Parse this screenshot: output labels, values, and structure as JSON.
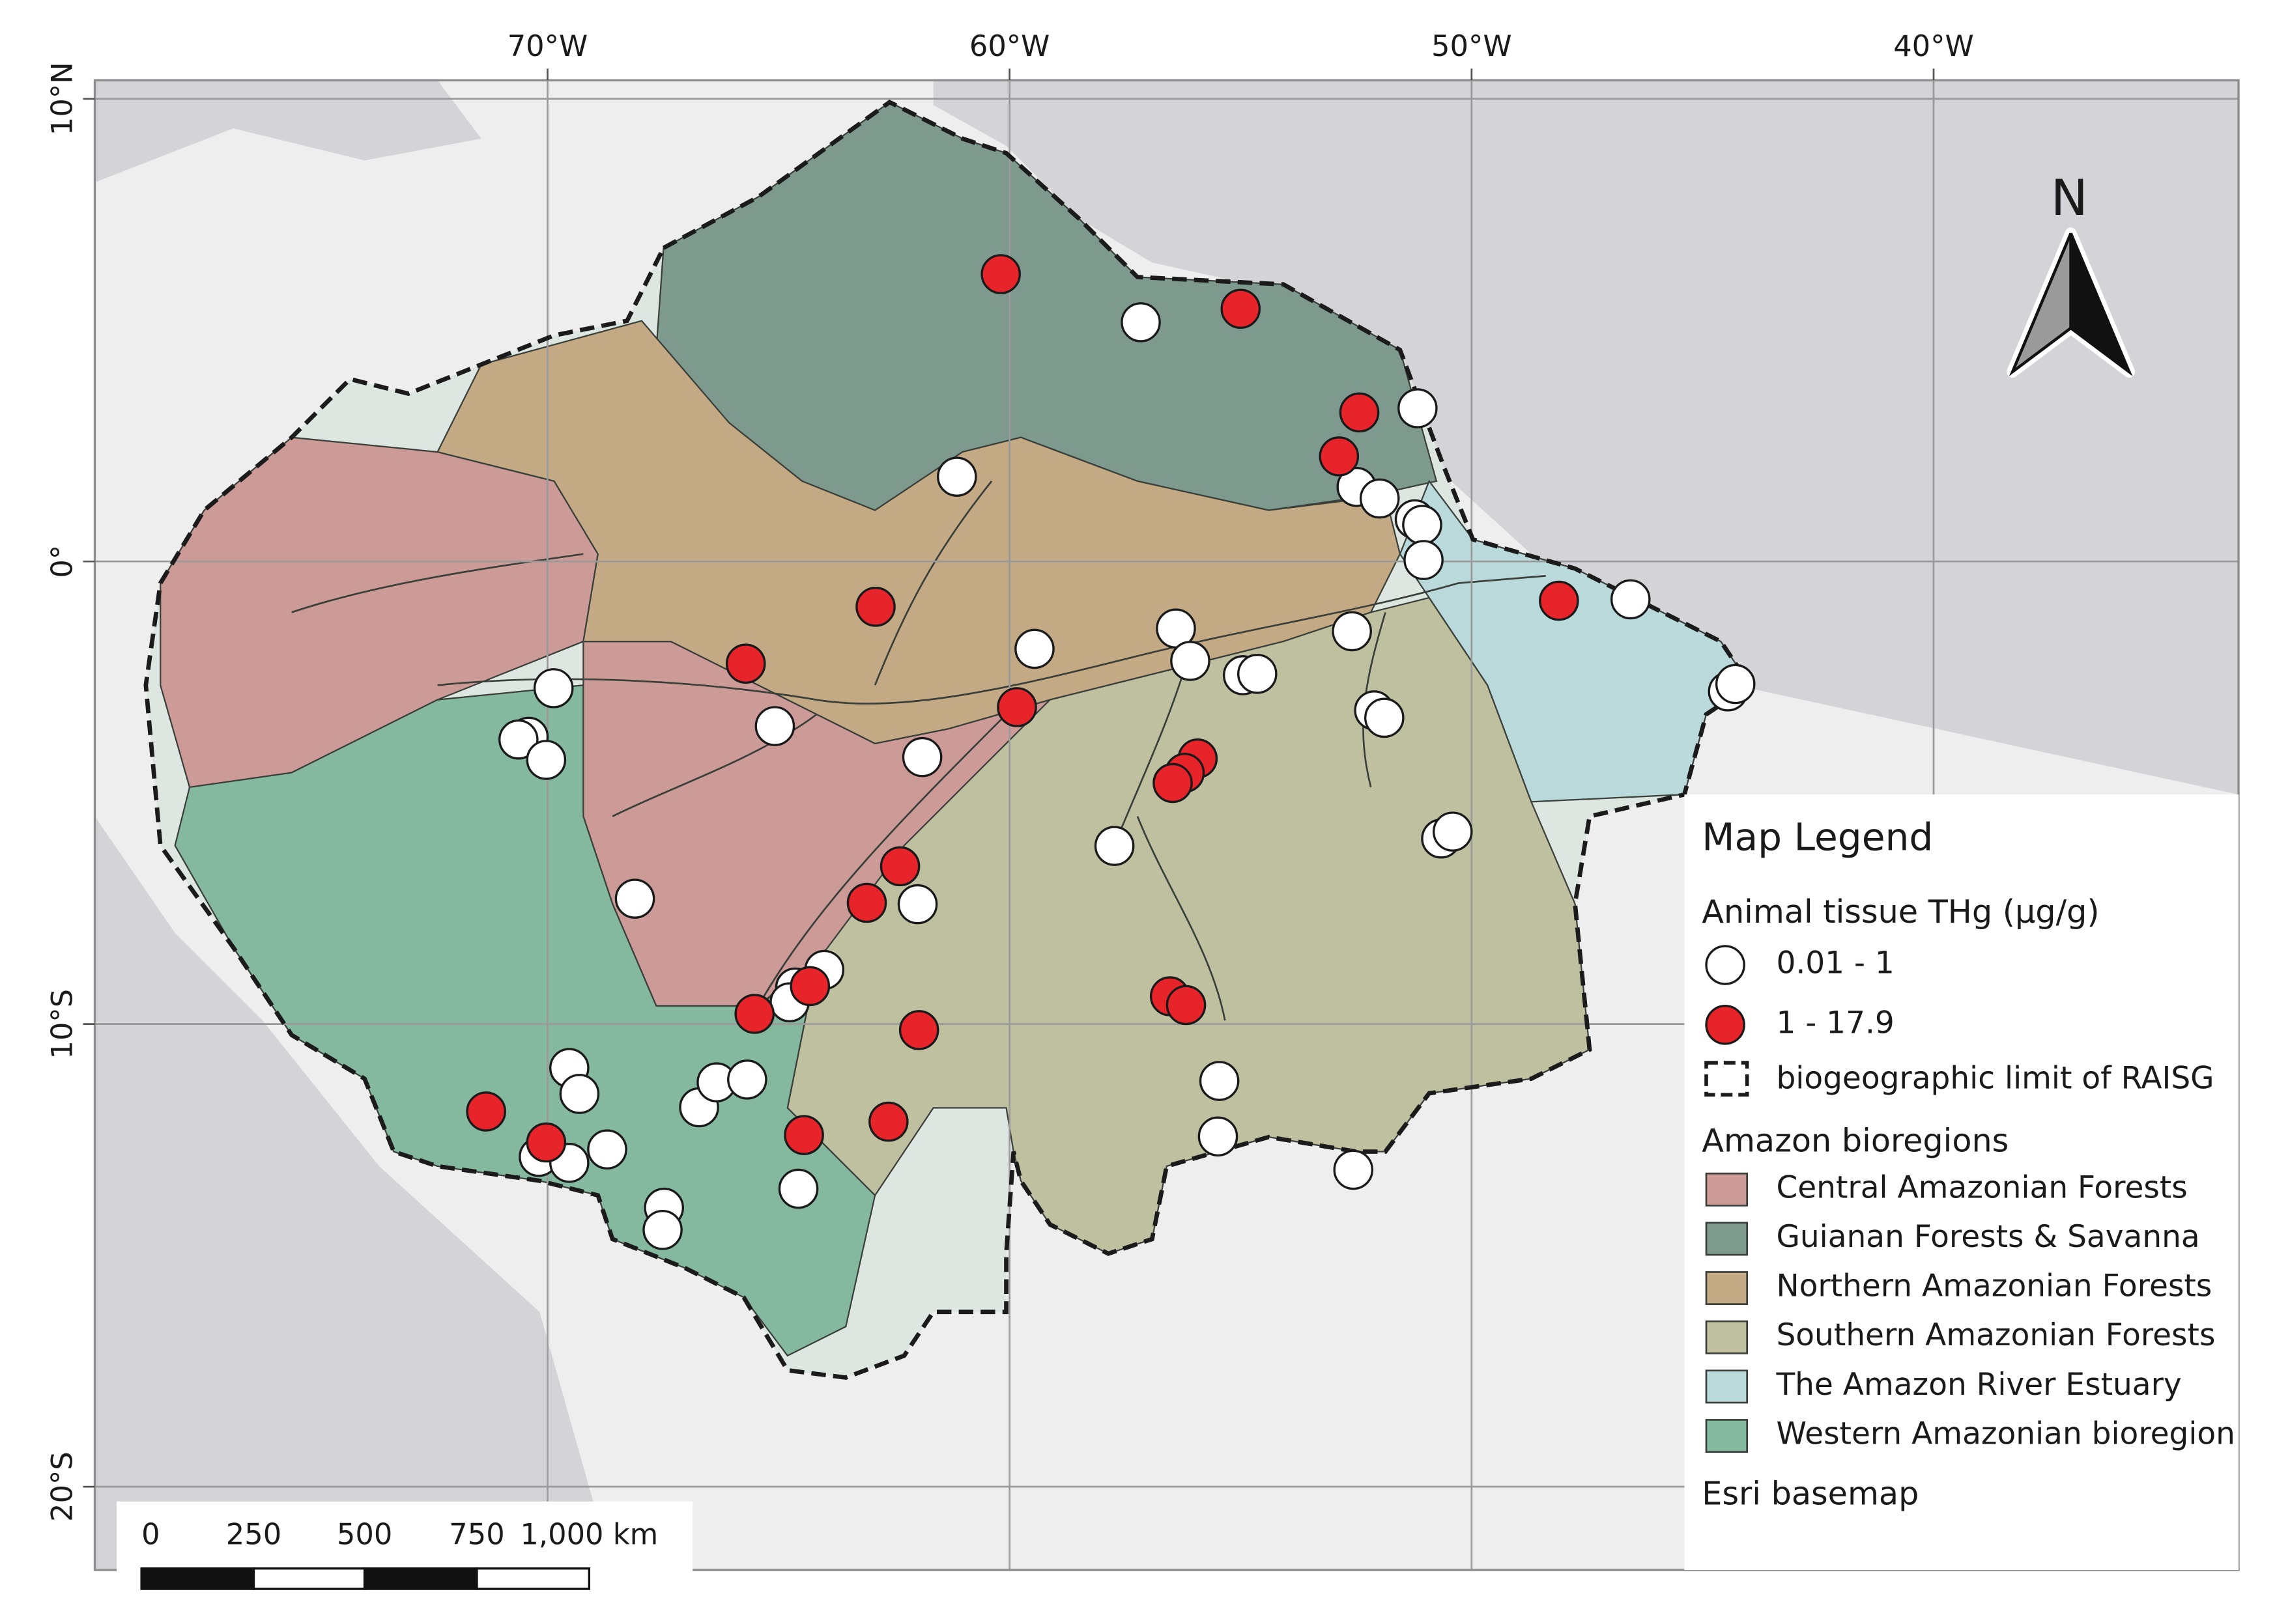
{
  "graticule": {
    "lon_range": [
      -79.8,
      -33.4
    ],
    "lat_range": [
      10.4,
      -21.8
    ],
    "meridians": [
      {
        "value": -70,
        "label": "70°W"
      },
      {
        "value": -60,
        "label": "60°W"
      },
      {
        "value": -50,
        "label": "50°W"
      },
      {
        "value": -40,
        "label": "40°W"
      }
    ],
    "parallels": [
      {
        "value": 10,
        "label": "10°N"
      },
      {
        "value": 0,
        "label": "0°"
      },
      {
        "value": -10,
        "label": "10°S"
      },
      {
        "value": -20,
        "label": "20°S"
      }
    ]
  },
  "north_arrow": "N",
  "legend": {
    "title": "Map Legend",
    "points_title": "Animal tissue THg (µg/g)",
    "classes": [
      {
        "label": "0.01 - 1",
        "color": "#ffffff",
        "points": [
          {
            "lon": -57.16,
            "lat": 5.17
          },
          {
            "lon": -51.17,
            "lat": 3.31
          },
          {
            "lon": -61.14,
            "lat": 1.83
          },
          {
            "lon": -52.49,
            "lat": 1.61
          },
          {
            "lon": -51.99,
            "lat": 1.36
          },
          {
            "lon": -51.23,
            "lat": 0.91
          },
          {
            "lon": -51.07,
            "lat": 0.79
          },
          {
            "lon": -51.04,
            "lat": 0.03
          },
          {
            "lon": -46.56,
            "lat": -0.82
          },
          {
            "lon": -52.59,
            "lat": -1.51
          },
          {
            "lon": -56.4,
            "lat": -1.45
          },
          {
            "lon": -59.46,
            "lat": -1.89
          },
          {
            "lon": -56.09,
            "lat": -2.15
          },
          {
            "lon": -54.95,
            "lat": -2.46
          },
          {
            "lon": -54.64,
            "lat": -2.43
          },
          {
            "lon": -44.45,
            "lat": -2.81
          },
          {
            "lon": -44.29,
            "lat": -2.65
          },
          {
            "lon": -69.87,
            "lat": -2.74
          },
          {
            "lon": -65.08,
            "lat": -3.56
          },
          {
            "lon": -70.41,
            "lat": -3.79
          },
          {
            "lon": -70.63,
            "lat": -3.85
          },
          {
            "lon": -70.03,
            "lat": -4.29
          },
          {
            "lon": -61.89,
            "lat": -4.23
          },
          {
            "lon": -52.11,
            "lat": -3.22
          },
          {
            "lon": -51.89,
            "lat": -3.38
          },
          {
            "lon": -57.73,
            "lat": -6.15
          },
          {
            "lon": -50.66,
            "lat": -5.99
          },
          {
            "lon": -50.41,
            "lat": -5.84
          },
          {
            "lon": -68.11,
            "lat": -7.29
          },
          {
            "lon": -61.99,
            "lat": -7.41
          },
          {
            "lon": -64.01,
            "lat": -8.83
          },
          {
            "lon": -64.64,
            "lat": -9.21
          },
          {
            "lon": -64.76,
            "lat": -9.53
          },
          {
            "lon": -69.53,
            "lat": -10.95
          },
          {
            "lon": -69.31,
            "lat": -11.51
          },
          {
            "lon": -55.46,
            "lat": -11.23
          },
          {
            "lon": -66.72,
            "lat": -11.8
          },
          {
            "lon": -66.34,
            "lat": -11.26
          },
          {
            "lon": -65.68,
            "lat": -11.2
          },
          {
            "lon": -68.71,
            "lat": -12.71
          },
          {
            "lon": -70.19,
            "lat": -12.87
          },
          {
            "lon": -69.53,
            "lat": -13.0
          },
          {
            "lon": -55.49,
            "lat": -12.43
          },
          {
            "lon": -52.56,
            "lat": -13.15
          },
          {
            "lon": -64.57,
            "lat": -13.56
          },
          {
            "lon": -67.48,
            "lat": -13.97
          },
          {
            "lon": -67.51,
            "lat": -14.45
          }
        ]
      },
      {
        "label": "1 - 17.9",
        "color": "#e8242b",
        "points": [
          {
            "lon": -60.19,
            "lat": 6.21
          },
          {
            "lon": -55.0,
            "lat": 5.46
          },
          {
            "lon": -52.43,
            "lat": 3.22
          },
          {
            "lon": -52.87,
            "lat": 2.27
          },
          {
            "lon": -62.9,
            "lat": -0.98
          },
          {
            "lon": -48.11,
            "lat": -0.85
          },
          {
            "lon": -65.71,
            "lat": -2.21
          },
          {
            "lon": -59.84,
            "lat": -3.15
          },
          {
            "lon": -55.93,
            "lat": -4.26
          },
          {
            "lon": -56.21,
            "lat": -4.57
          },
          {
            "lon": -56.47,
            "lat": -4.79
          },
          {
            "lon": -62.37,
            "lat": -6.59
          },
          {
            "lon": -63.09,
            "lat": -7.38
          },
          {
            "lon": -61.96,
            "lat": -10.13
          },
          {
            "lon": -65.52,
            "lat": -9.78
          },
          {
            "lon": -64.32,
            "lat": -9.18
          },
          {
            "lon": -56.53,
            "lat": -9.4
          },
          {
            "lon": -56.18,
            "lat": -9.59
          },
          {
            "lon": -71.33,
            "lat": -11.89
          },
          {
            "lon": -70.03,
            "lat": -12.56
          },
          {
            "lon": -64.45,
            "lat": -12.4
          },
          {
            "lon": -62.62,
            "lat": -12.11
          }
        ]
      }
    ],
    "boundary_label": "biogeographic limit of RAISG",
    "bioregions_title": "Amazon bioregions",
    "bioregions": [
      {
        "label": "Central Amazonian Forests",
        "color": "#cc9b97"
      },
      {
        "label": "Guianan Forests & Savanna",
        "color": "#7e9a8e"
      },
      {
        "label": "Northern Amazonian Forests",
        "color": "#c4aa84"
      },
      {
        "label": "Southern Amazonian Forests",
        "color": "#bec0a0"
      },
      {
        "label": "The Amazon River Estuary",
        "color": "#b9d9da"
      },
      {
        "label": "Western Amazonian bioregion",
        "color": "#84b89f"
      }
    ],
    "basemap_label": "Esri basemap"
  },
  "scale_bar": {
    "labels": [
      "0",
      "250",
      "500",
      "750",
      "1,000 km"
    ]
  }
}
